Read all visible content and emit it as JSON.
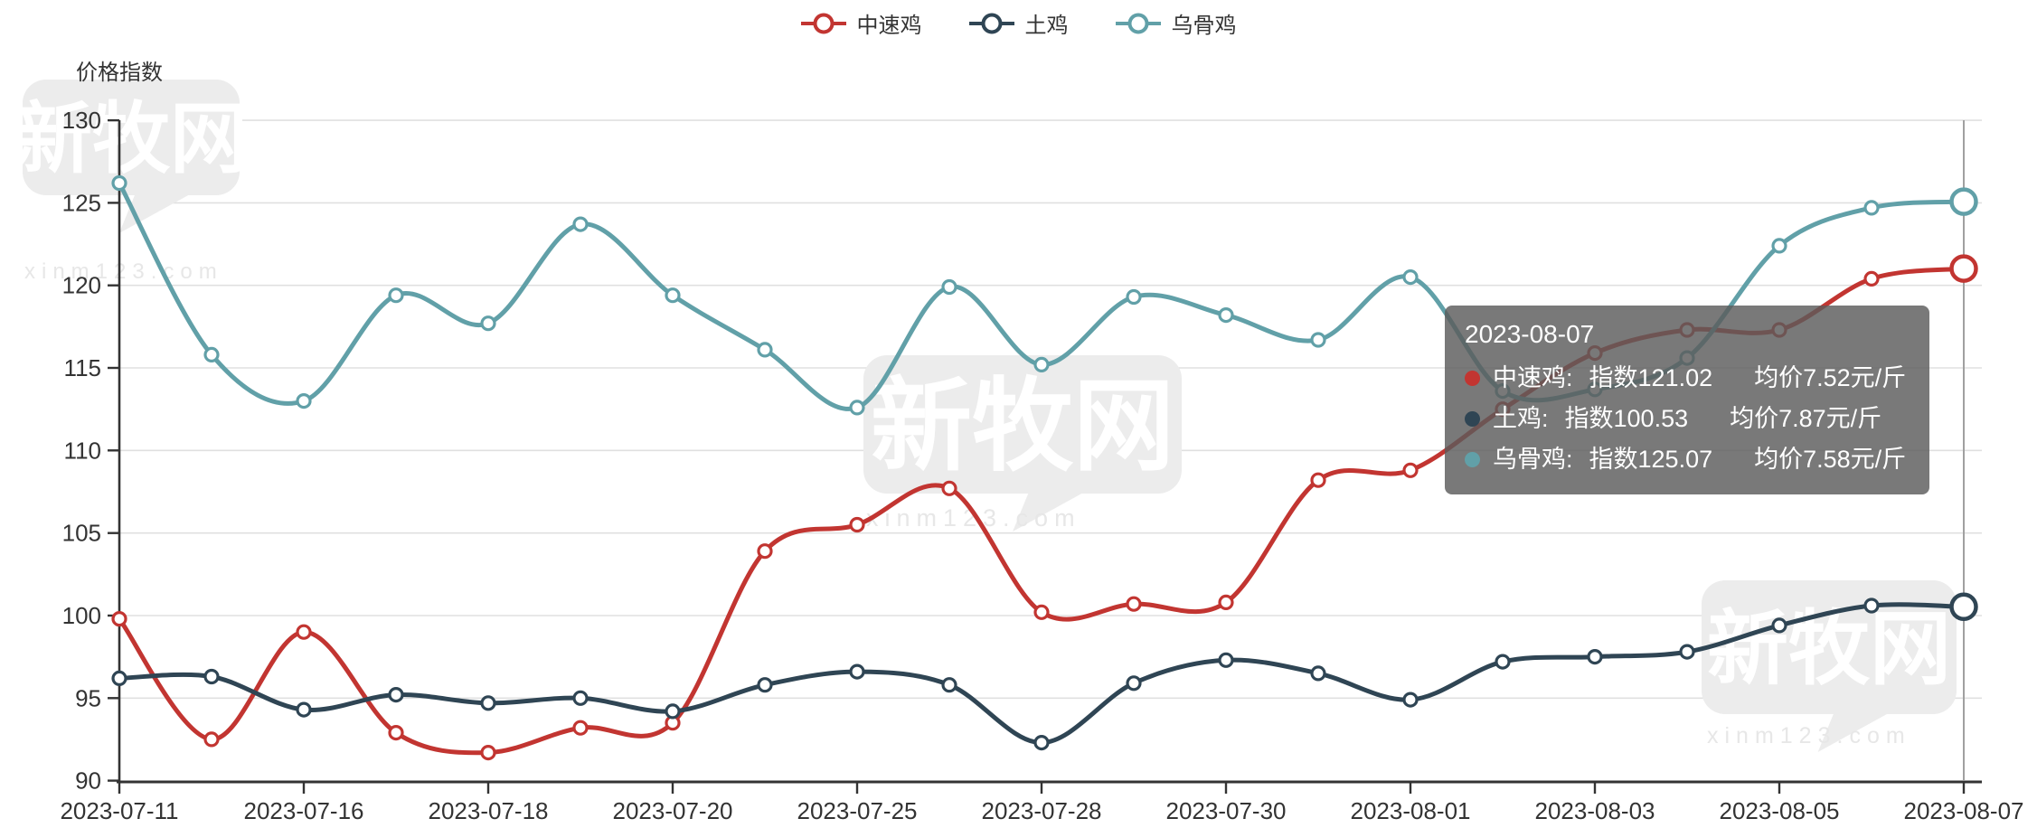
{
  "legend": {
    "items": [
      {
        "label": "中速鸡",
        "color": "#c23531"
      },
      {
        "label": "土鸡",
        "color": "#2f4554"
      },
      {
        "label": "乌骨鸡",
        "color": "#61a0a8"
      }
    ]
  },
  "y_axis_name": "价格指数",
  "tooltip": {
    "title": "2023-08-07",
    "rows": [
      {
        "name": "中速鸡:",
        "index_text": "指数121.02",
        "price_text": "均价7.52元/斤",
        "color": "#c23531"
      },
      {
        "name": "土鸡:",
        "index_text": "指数100.53",
        "price_text": "均价7.87元/斤",
        "color": "#2f4554"
      },
      {
        "name": "乌骨鸡:",
        "index_text": "指数125.07",
        "price_text": "均价7.58元/斤",
        "color": "#61a0a8"
      }
    ]
  },
  "watermark": {
    "logo_text": "新牧网",
    "site_text": "xinm123.com"
  },
  "colors": {
    "axis": "#333333",
    "grid": "#e0e0e0",
    "tick_label": "#333333",
    "pointer": "#a0a0a0",
    "watermark_fill": "#ececec",
    "watermark_glyph": "#ffffff",
    "watermark_site": "#e7e7e7"
  },
  "chart_data": {
    "type": "line",
    "title": "",
    "smooth": true,
    "grid": true,
    "legend_position": "top",
    "ylabel": "价格指数",
    "ylim": [
      90,
      130
    ],
    "y_ticks": [
      90,
      95,
      100,
      105,
      110,
      115,
      120,
      125,
      130
    ],
    "x_tick_labels": [
      "2023-07-11",
      "2023-07-16",
      "2023-07-18",
      "2023-07-20",
      "2023-07-25",
      "2023-07-28",
      "2023-07-30",
      "2023-08-01",
      "2023-08-03",
      "2023-08-05",
      "2023-08-07"
    ],
    "x_points_per_label": 2,
    "highlighted_x": "2023-08-07",
    "series": [
      {
        "name": "中速鸡",
        "color": "#c23531",
        "values": [
          99.8,
          92.5,
          99.0,
          92.9,
          91.7,
          93.2,
          93.5,
          103.9,
          105.5,
          107.7,
          100.2,
          100.7,
          100.8,
          108.2,
          108.8,
          112.5,
          115.9,
          117.3,
          117.3,
          120.4,
          121.02
        ]
      },
      {
        "name": "土鸡",
        "color": "#2f4554",
        "values": [
          96.2,
          96.3,
          94.3,
          95.2,
          94.7,
          95.0,
          94.2,
          95.8,
          96.6,
          95.8,
          92.3,
          95.9,
          97.3,
          96.5,
          94.9,
          97.2,
          97.5,
          97.8,
          99.4,
          100.6,
          100.53
        ]
      },
      {
        "name": "乌骨鸡",
        "color": "#61a0a8",
        "values": [
          126.2,
          115.8,
          113.0,
          119.4,
          117.7,
          123.7,
          119.4,
          116.1,
          112.6,
          119.9,
          115.2,
          119.3,
          118.2,
          116.7,
          120.5,
          113.6,
          113.7,
          115.6,
          122.4,
          124.7,
          125.07
        ]
      }
    ],
    "tooltip_values": {
      "date": "2023-08-07",
      "中速鸡": {
        "index": 121.02,
        "avg_price": "7.52元/斤"
      },
      "土鸡": {
        "index": 100.53,
        "avg_price": "7.87元/斤"
      },
      "乌骨鸡": {
        "index": 125.07,
        "avg_price": "7.58元/斤"
      }
    }
  }
}
